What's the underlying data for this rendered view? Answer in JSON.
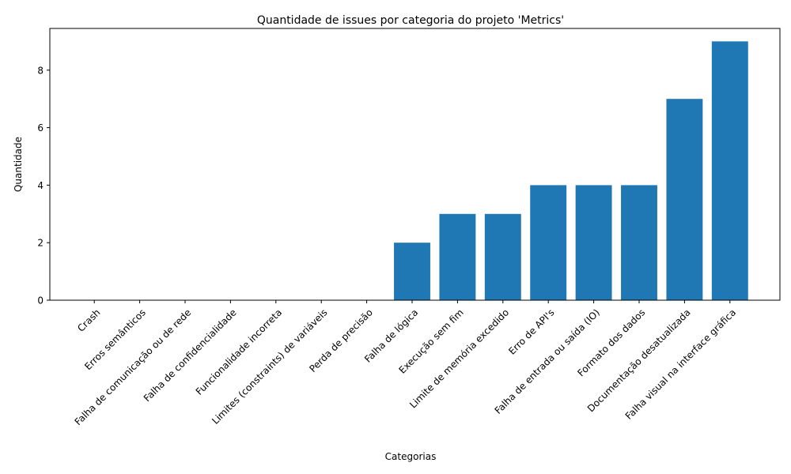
{
  "chart_data": {
    "type": "bar",
    "title": "Quantidade de issues por categoria do projeto 'Metrics'",
    "xlabel": "Categorias",
    "ylabel": "Quantidade",
    "categories": [
      "Crash",
      "Erros semânticos",
      "Falha de comunicação ou de rede",
      "Falha de confidencialidade",
      "Funcionalidade incorreta",
      "Limites (constraints) de variáveis",
      "Perda de precisão",
      "Falha de lógica",
      "Execução sem fim",
      "Limite de memória excedido",
      "Erro de API's",
      "Falha de entrada ou saída (IO)",
      "Formato dos dados",
      "Documentação desatualizada",
      "Falha visual na interface gráfica"
    ],
    "values": [
      0,
      0,
      0,
      0,
      0,
      0,
      0,
      2,
      3,
      3,
      4,
      4,
      4,
      7,
      9
    ],
    "ylim": [
      0,
      9.45
    ],
    "yticks": [
      0,
      2,
      4,
      6,
      8
    ],
    "grid": false,
    "bar_color": "#1f77b4"
  }
}
